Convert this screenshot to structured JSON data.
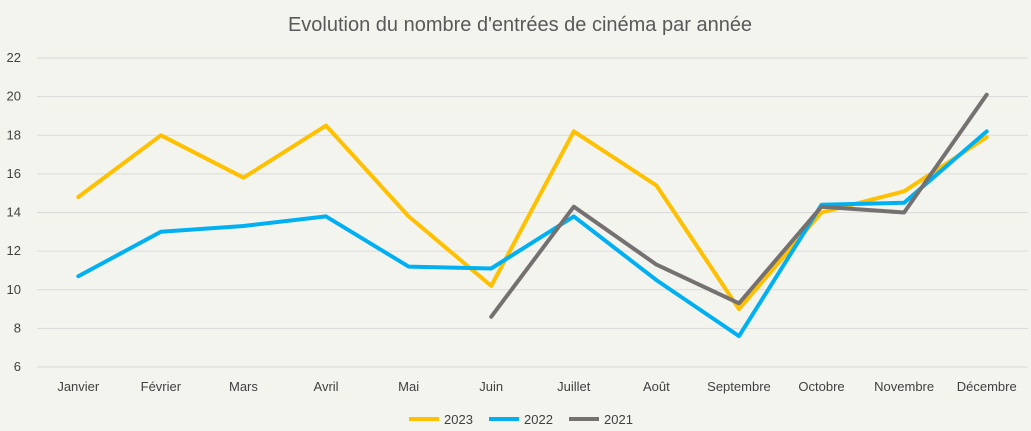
{
  "chart_data": {
    "type": "line",
    "title": "Evolution du nombre d'entrées de cinéma par année",
    "xlabel": "",
    "ylabel": "",
    "ylim": [
      6,
      22
    ],
    "yticks": [
      6,
      8,
      10,
      12,
      14,
      16,
      18,
      20,
      22
    ],
    "grid": true,
    "legend_position": "bottom",
    "categories": [
      "Janvier",
      "Février",
      "Mars",
      "Avril",
      "Mai",
      "Juin",
      "Juillet",
      "Août",
      "Septembre",
      "Octobre",
      "Novembre",
      "Décembre"
    ],
    "series": [
      {
        "name": "2023",
        "color": "#ffc000",
        "values": [
          14.8,
          18.0,
          15.8,
          18.5,
          13.8,
          10.2,
          18.2,
          15.4,
          9.0,
          14.0,
          15.1,
          17.9
        ]
      },
      {
        "name": "2022",
        "color": "#00b0f0",
        "values": [
          10.7,
          13.0,
          13.3,
          13.8,
          11.2,
          11.1,
          13.8,
          10.5,
          7.6,
          14.4,
          14.5,
          18.2
        ]
      },
      {
        "name": "2021",
        "color": "#767171",
        "values": [
          null,
          null,
          null,
          null,
          null,
          8.6,
          14.3,
          11.3,
          9.3,
          14.3,
          14.0,
          20.1
        ]
      }
    ]
  }
}
